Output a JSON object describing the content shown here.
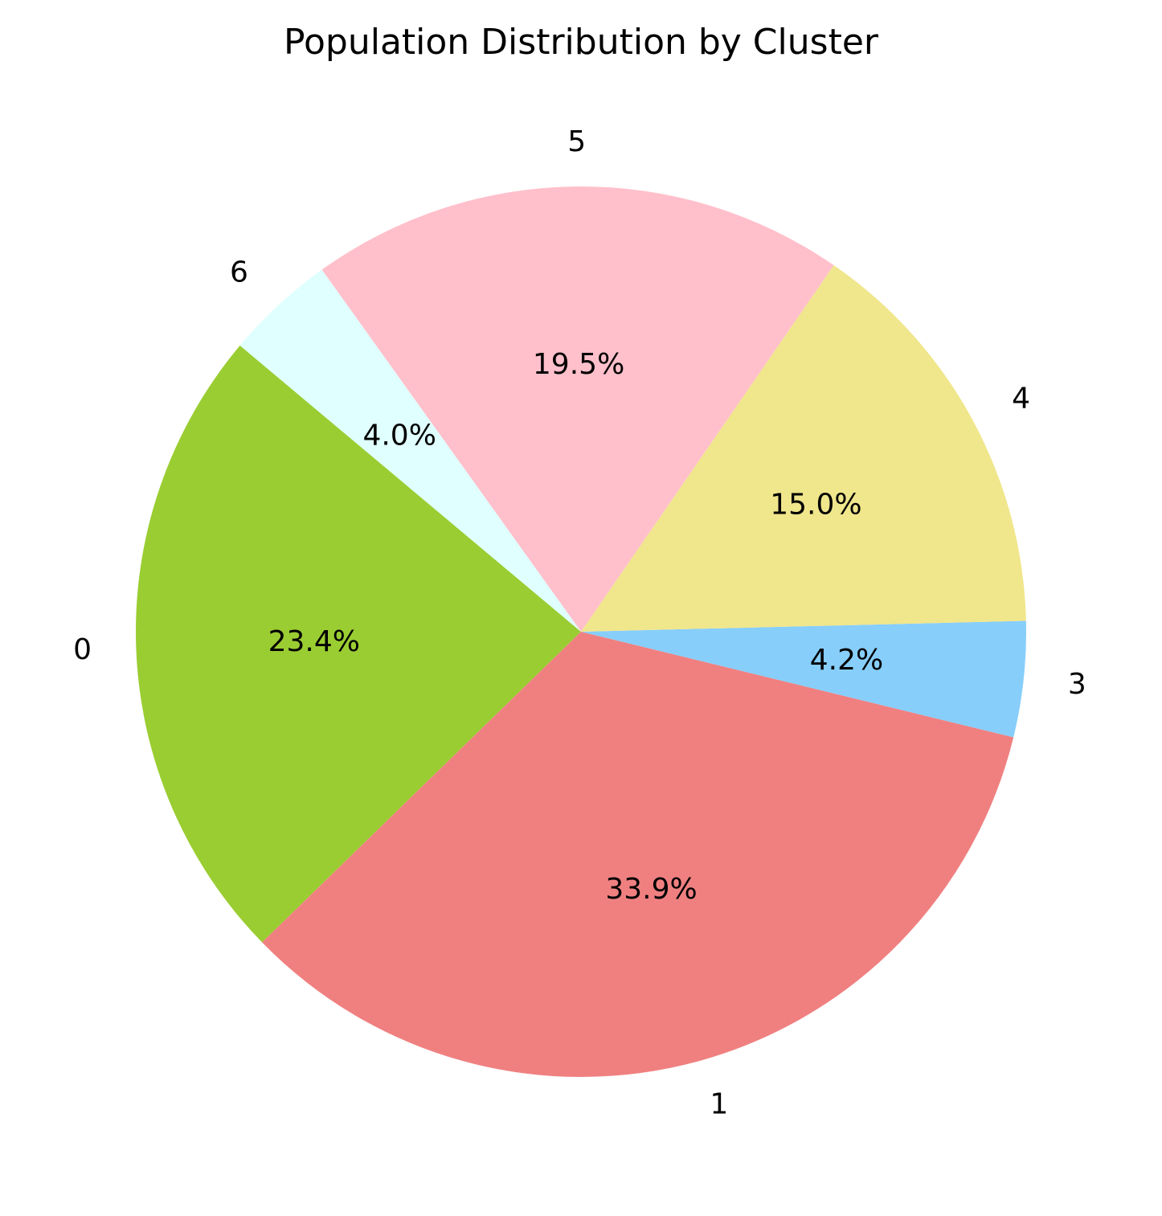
{
  "chart_data": {
    "type": "pie",
    "title": "Population Distribution by Cluster",
    "categories": [
      "0",
      "1",
      "3",
      "4",
      "5",
      "6"
    ],
    "values": [
      23.4,
      33.9,
      4.2,
      15.0,
      19.5,
      4.0
    ],
    "value_labels": [
      "23.4%",
      "33.9%",
      "4.2%",
      "15.0%",
      "19.5%",
      "4.0%"
    ],
    "colors": [
      "#9acd32",
      "#f08080",
      "#87cefa",
      "#f0e68c",
      "#ffc0cb",
      "#e0ffff"
    ],
    "start_angle_deg": 140,
    "direction": "counterclockwise",
    "legend": "none"
  }
}
